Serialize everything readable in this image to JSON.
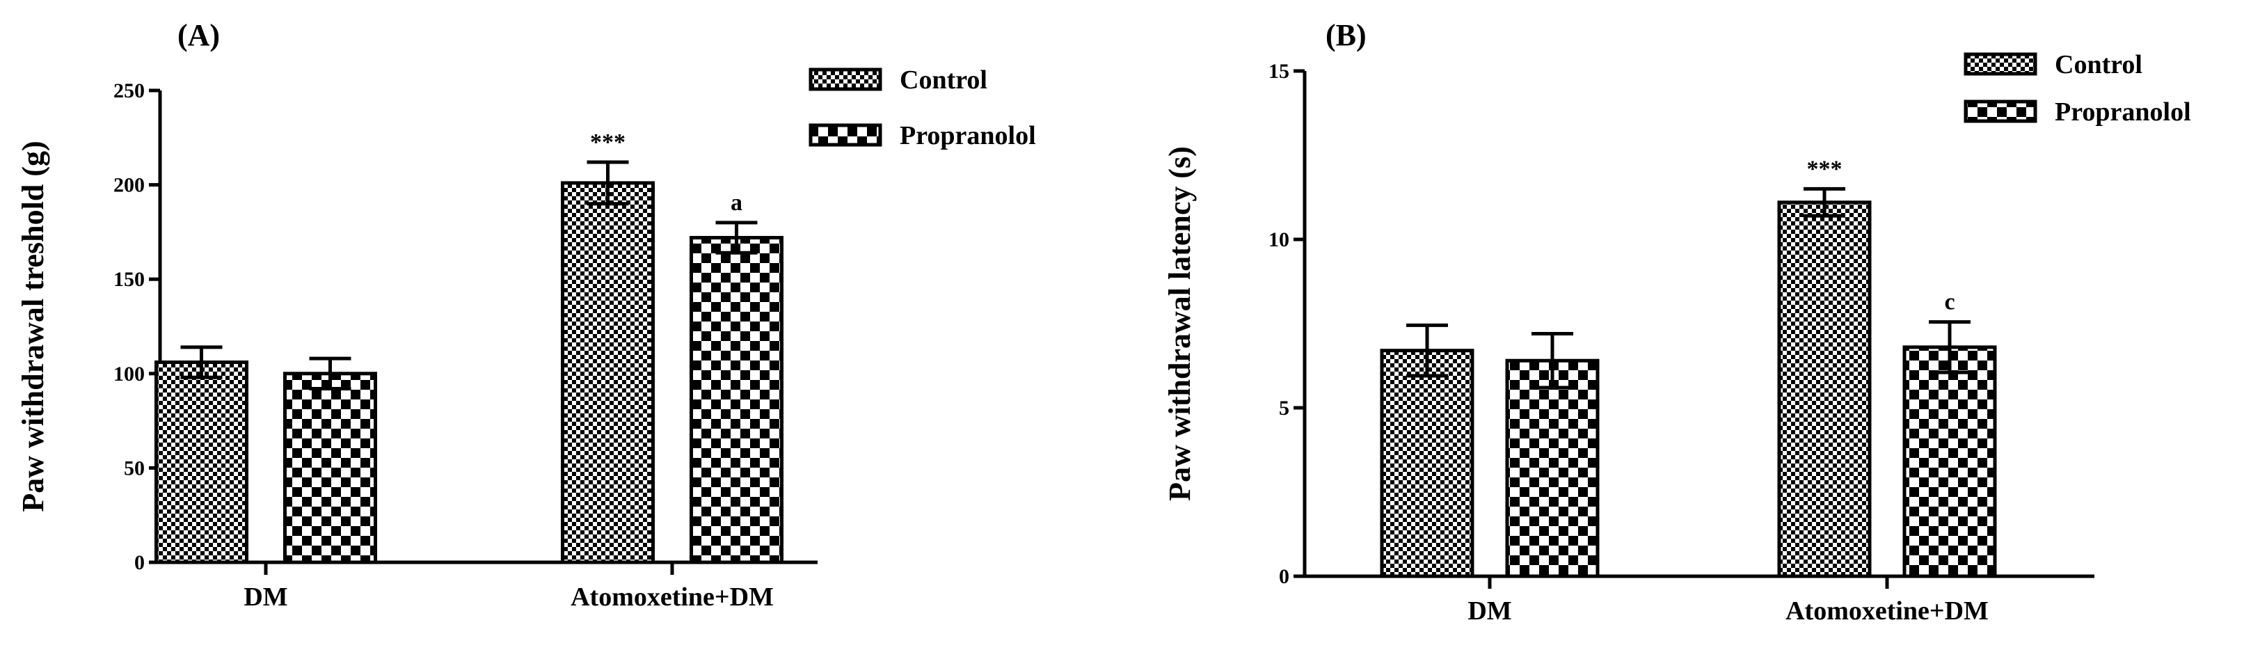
{
  "chart_data": [
    {
      "type": "bar",
      "panel_label": "(A)",
      "title": "",
      "xlabel": "",
      "ylabel": "Paw withdrawal treshold (g)",
      "ylim": [
        0,
        250
      ],
      "yticks": [
        0,
        50,
        100,
        150,
        200,
        250
      ],
      "categories": [
        "DM",
        "Atomoxetine+DM"
      ],
      "series": [
        {
          "name": "Control",
          "pattern": "fine-checker",
          "values": [
            106,
            201
          ],
          "errors": [
            8,
            11
          ]
        },
        {
          "name": "Propranolol",
          "pattern": "coarse-checker",
          "values": [
            100,
            172
          ],
          "errors": [
            8,
            8
          ]
        }
      ],
      "annotations": [
        {
          "category": 1,
          "series": 0,
          "text": "***"
        },
        {
          "category": 1,
          "series": 1,
          "text": "a"
        }
      ],
      "legend_position": "top-right"
    },
    {
      "type": "bar",
      "panel_label": "(B)",
      "title": "",
      "xlabel": "",
      "ylabel": "Paw withdrawal latency (s)",
      "ylim": [
        0,
        15
      ],
      "yticks": [
        0,
        5,
        10,
        15
      ],
      "categories": [
        "DM",
        "Atomoxetine+DM"
      ],
      "series": [
        {
          "name": "Control",
          "pattern": "fine-checker",
          "values": [
            6.7,
            11.1
          ],
          "errors": [
            0.75,
            0.4
          ]
        },
        {
          "name": "Propranolol",
          "pattern": "coarse-checker",
          "values": [
            6.4,
            6.8
          ],
          "errors": [
            0.8,
            0.75
          ]
        }
      ],
      "annotations": [
        {
          "category": 1,
          "series": 0,
          "text": "***"
        },
        {
          "category": 1,
          "series": 1,
          "text": "c"
        }
      ],
      "legend_position": "top-right"
    }
  ],
  "colors": {
    "ink": "#000000",
    "background": "#ffffff"
  }
}
